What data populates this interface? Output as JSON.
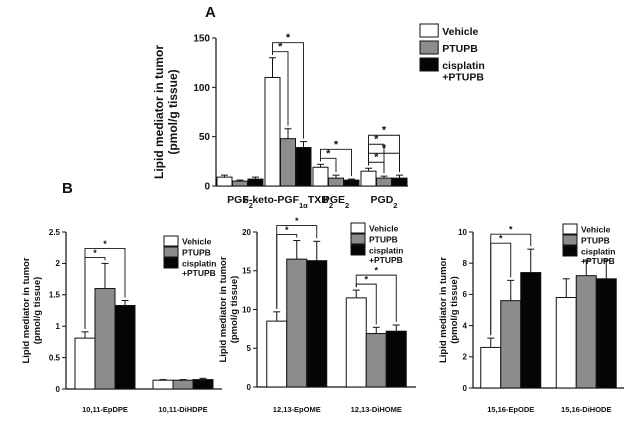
{
  "panel_a_label": "A",
  "panel_b_label": "B",
  "legend": [
    {
      "label": "Vehicle",
      "color": "#ffffff"
    },
    {
      "label": "PTUPB",
      "color": "#8c8c8c"
    },
    {
      "label": "cisplatin",
      "label2": "+PTUPB",
      "color": "#050505"
    }
  ],
  "chart_data": [
    {
      "type": "bar",
      "panel": "A",
      "ylabel": "Lipid mediator in tumor",
      "ylabel2": "(pmol/g tissue)",
      "ylim": [
        0,
        150
      ],
      "yticks": [
        "0",
        "50",
        "100",
        "150"
      ],
      "categories": [
        "PGF2",
        "6-keto-PGF1αTXB2",
        "PGE2",
        "PGD2"
      ],
      "category_labels": [
        {
          "main": "PGF",
          "sub": "2"
        },
        {
          "main": "6-keto-PGF",
          "sub": "1α",
          "main2": "TXB",
          "sub2": "2"
        },
        {
          "main": "PGE",
          "sub": "2"
        },
        {
          "main": "PGD",
          "sub": "2"
        }
      ],
      "series": [
        {
          "name": "Vehicle",
          "values": [
            9,
            110,
            19,
            15
          ],
          "errors": [
            2,
            20,
            3,
            3
          ]
        },
        {
          "name": "PTUPB",
          "values": [
            5,
            48,
            8,
            8
          ],
          "errors": [
            1,
            10,
            3,
            2
          ]
        },
        {
          "name": "cisplatin +PTUPB",
          "values": [
            7,
            39,
            6,
            8
          ],
          "errors": [
            2,
            6,
            1,
            3
          ]
        }
      ],
      "significance": [
        {
          "category": 1,
          "from": 0,
          "to": 1,
          "label": "*"
        },
        {
          "category": 1,
          "from": 0,
          "to": 2,
          "label": "*"
        },
        {
          "category": 2,
          "from": 0,
          "to": 1,
          "label": "*"
        },
        {
          "category": 2,
          "from": 0,
          "to": 2,
          "label": "*"
        },
        {
          "category": 3,
          "from": 0,
          "to": 1,
          "label": "*"
        },
        {
          "category": 3,
          "from": 0,
          "to": 2,
          "label": "*"
        },
        {
          "category": 4,
          "from": 0,
          "to": 1,
          "label": "*"
        },
        {
          "category": 4,
          "from": 0,
          "to": 2,
          "label": "*"
        }
      ]
    },
    {
      "type": "bar",
      "panel": "B1",
      "ylabel": "Lipid mediator in tumor",
      "ylabel2": "(pmol/g tissue)",
      "ylim": [
        0,
        2.5
      ],
      "yticks": [
        "0",
        "0.5",
        "1",
        "1.5",
        "2",
        "2.5"
      ],
      "categories": [
        "10,11-EpDPE",
        "10,11-DiHDPE"
      ],
      "series": [
        {
          "name": "Vehicle",
          "values": [
            0.81,
            0.14
          ],
          "errors": [
            0.1,
            0.01
          ]
        },
        {
          "name": "PTUPB",
          "values": [
            1.6,
            0.14
          ],
          "errors": [
            0.4,
            0.01
          ]
        },
        {
          "name": "cisplatin +PTUPB",
          "values": [
            1.33,
            0.15
          ],
          "errors": [
            0.08,
            0.02
          ]
        }
      ],
      "significance": [
        {
          "category": 0,
          "from": 0,
          "to": 1,
          "label": "*"
        },
        {
          "category": 0,
          "from": 0,
          "to": 2,
          "label": "*"
        }
      ]
    },
    {
      "type": "bar",
      "panel": "B2",
      "ylabel": "Lipid mediator in tumor",
      "ylabel2": "(pmol/g tissue)",
      "ylim": [
        0,
        20
      ],
      "yticks": [
        "0",
        "5",
        "10",
        "15",
        "20"
      ],
      "categories": [
        "12,13-EpOME",
        "12,13-DiHOME"
      ],
      "series": [
        {
          "name": "Vehicle",
          "values": [
            8.5,
            11.5
          ],
          "errors": [
            1.2,
            1.0
          ]
        },
        {
          "name": "PTUPB",
          "values": [
            16.5,
            6.9
          ],
          "errors": [
            2.4,
            0.8
          ]
        },
        {
          "name": "cisplatin +PTUPB",
          "values": [
            16.3,
            7.2
          ],
          "errors": [
            2.5,
            0.8
          ]
        }
      ],
      "significance": [
        {
          "category": 0,
          "from": 0,
          "to": 1,
          "label": "*"
        },
        {
          "category": 0,
          "from": 0,
          "to": 2,
          "label": "*"
        },
        {
          "category": 1,
          "from": 0,
          "to": 1,
          "label": "*"
        },
        {
          "category": 1,
          "from": 0,
          "to": 2,
          "label": "*"
        }
      ]
    },
    {
      "type": "bar",
      "panel": "B3",
      "ylabel": "Lipid mediator in tumor",
      "ylabel2": "(pmol/g tissue)",
      "ylim": [
        0,
        10
      ],
      "yticks": [
        "0",
        "2",
        "4",
        "6",
        "8",
        "10"
      ],
      "categories": [
        "15,16-EpODE",
        "15,16-DiHODE"
      ],
      "series": [
        {
          "name": "Vehicle",
          "values": [
            2.6,
            5.8
          ],
          "errors": [
            0.6,
            1.2
          ]
        },
        {
          "name": "PTUPB",
          "values": [
            5.6,
            7.2
          ],
          "errors": [
            1.3,
            1.0
          ]
        },
        {
          "name": "cisplatin +PTUPB",
          "values": [
            7.4,
            7.0
          ],
          "errors": [
            1.5,
            1.2
          ]
        }
      ],
      "significance": [
        {
          "category": 0,
          "from": 0,
          "to": 1,
          "label": "*"
        },
        {
          "category": 0,
          "from": 0,
          "to": 2,
          "label": "*"
        }
      ]
    }
  ]
}
